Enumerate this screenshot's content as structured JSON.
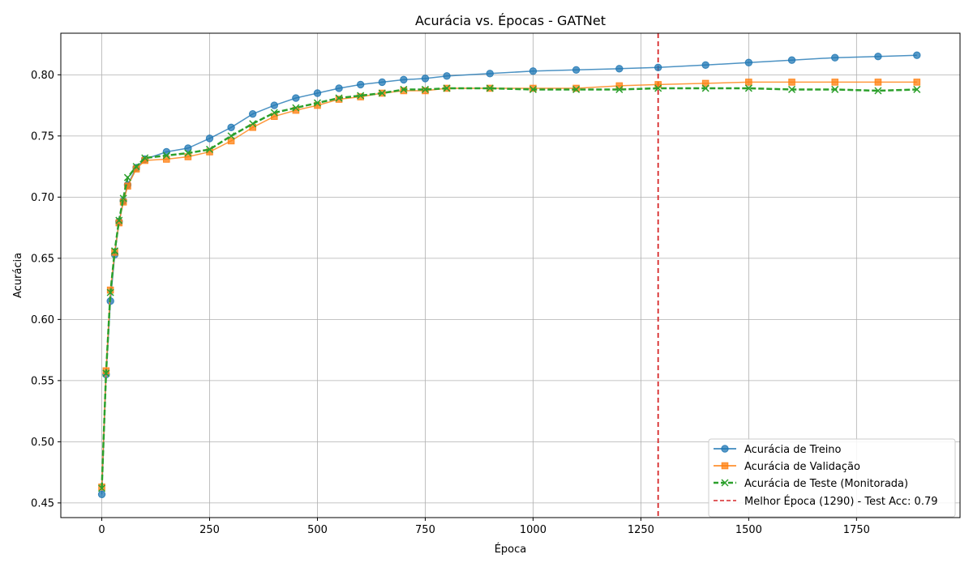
{
  "chart_data": {
    "type": "line",
    "title": "Acurácia vs. Épocas - GATNet",
    "xlabel": "Época",
    "ylabel": "Acurácia",
    "xlim": [
      -95,
      1990
    ],
    "ylim": [
      0.438,
      0.834
    ],
    "xticks": [
      0,
      250,
      500,
      750,
      1000,
      1250,
      1500,
      1750
    ],
    "yticks": [
      0.45,
      0.5,
      0.55,
      0.6,
      0.65,
      0.7,
      0.75,
      0.8
    ],
    "ytick_labels": [
      "0.45",
      "0.50",
      "0.55",
      "0.60",
      "0.65",
      "0.70",
      "0.75",
      "0.80"
    ],
    "grid": true,
    "legend_position": "lower-right",
    "best_epoch": {
      "x": 1290,
      "label": "Melhor Época (1290) - Test Acc: 0.79",
      "color": "#d62728"
    },
    "series": [
      {
        "name": "Acurácia de Treino",
        "color": "#1f77b4",
        "marker": "circle",
        "dashed": false,
        "x": [
          0,
          10,
          20,
          30,
          40,
          50,
          60,
          80,
          100,
          150,
          200,
          250,
          300,
          350,
          400,
          450,
          500,
          550,
          600,
          650,
          700,
          750,
          800,
          900,
          1000,
          1100,
          1200,
          1290,
          1400,
          1500,
          1600,
          1700,
          1800,
          1890
        ],
        "y": [
          0.457,
          0.555,
          0.615,
          0.653,
          0.68,
          0.697,
          0.71,
          0.724,
          0.731,
          0.737,
          0.74,
          0.748,
          0.757,
          0.768,
          0.775,
          0.781,
          0.785,
          0.789,
          0.792,
          0.794,
          0.796,
          0.797,
          0.799,
          0.801,
          0.803,
          0.804,
          0.805,
          0.806,
          0.808,
          0.81,
          0.812,
          0.814,
          0.815,
          0.816
        ]
      },
      {
        "name": "Acurácia de Validação",
        "color": "#ff7f0e",
        "marker": "square",
        "dashed": false,
        "x": [
          0,
          10,
          20,
          30,
          40,
          50,
          60,
          80,
          100,
          150,
          200,
          250,
          300,
          350,
          400,
          450,
          500,
          550,
          600,
          650,
          700,
          750,
          800,
          900,
          1000,
          1100,
          1200,
          1290,
          1400,
          1500,
          1600,
          1700,
          1800,
          1890
        ],
        "y": [
          0.463,
          0.558,
          0.624,
          0.655,
          0.679,
          0.696,
          0.709,
          0.723,
          0.73,
          0.731,
          0.733,
          0.737,
          0.746,
          0.757,
          0.766,
          0.771,
          0.775,
          0.78,
          0.782,
          0.785,
          0.787,
          0.787,
          0.789,
          0.789,
          0.789,
          0.789,
          0.791,
          0.792,
          0.793,
          0.794,
          0.794,
          0.794,
          0.794,
          0.794
        ]
      },
      {
        "name": "Acurácia de Teste (Monitorada)",
        "color": "#2ca02c",
        "marker": "x",
        "dashed": true,
        "x": [
          0,
          10,
          20,
          30,
          40,
          50,
          60,
          80,
          100,
          150,
          200,
          250,
          300,
          350,
          400,
          450,
          500,
          550,
          600,
          650,
          700,
          750,
          800,
          900,
          1000,
          1100,
          1200,
          1290,
          1400,
          1500,
          1600,
          1700,
          1800,
          1890
        ],
        "y": [
          0.462,
          0.556,
          0.622,
          0.656,
          0.681,
          0.699,
          0.716,
          0.725,
          0.732,
          0.734,
          0.736,
          0.739,
          0.75,
          0.76,
          0.769,
          0.773,
          0.777,
          0.781,
          0.783,
          0.785,
          0.788,
          0.788,
          0.789,
          0.789,
          0.788,
          0.788,
          0.788,
          0.789,
          0.789,
          0.789,
          0.788,
          0.788,
          0.787,
          0.788
        ]
      }
    ]
  }
}
